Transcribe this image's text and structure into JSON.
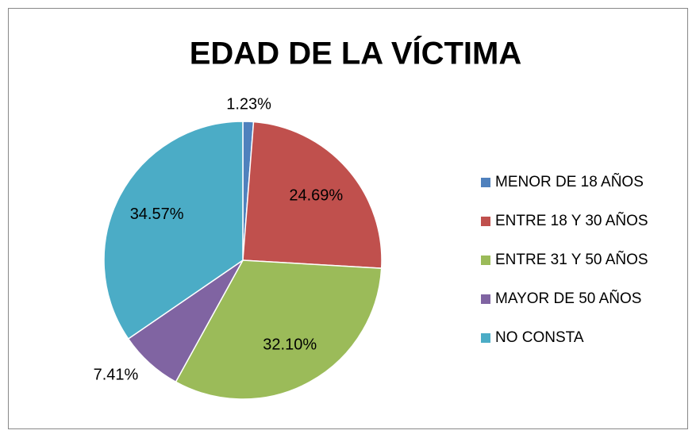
{
  "chart_data": {
    "type": "pie",
    "title": "EDAD DE LA VÍCTIMA",
    "categories": [
      "MENOR DE 18 AÑOS",
      "ENTRE 18 Y 30 AÑOS",
      "ENTRE 31 Y 50 AÑOS",
      "MAYOR DE 50 AÑOS",
      "NO CONSTA"
    ],
    "values": [
      1.23,
      24.69,
      32.1,
      7.41,
      34.57
    ],
    "value_labels": [
      "1.23%",
      "24.69%",
      "32.10%",
      "7.41%",
      "34.57%"
    ],
    "colors": [
      "#4f81bd",
      "#c0504d",
      "#9bbb59",
      "#8064a2",
      "#4bacc6"
    ],
    "legend": "right"
  }
}
